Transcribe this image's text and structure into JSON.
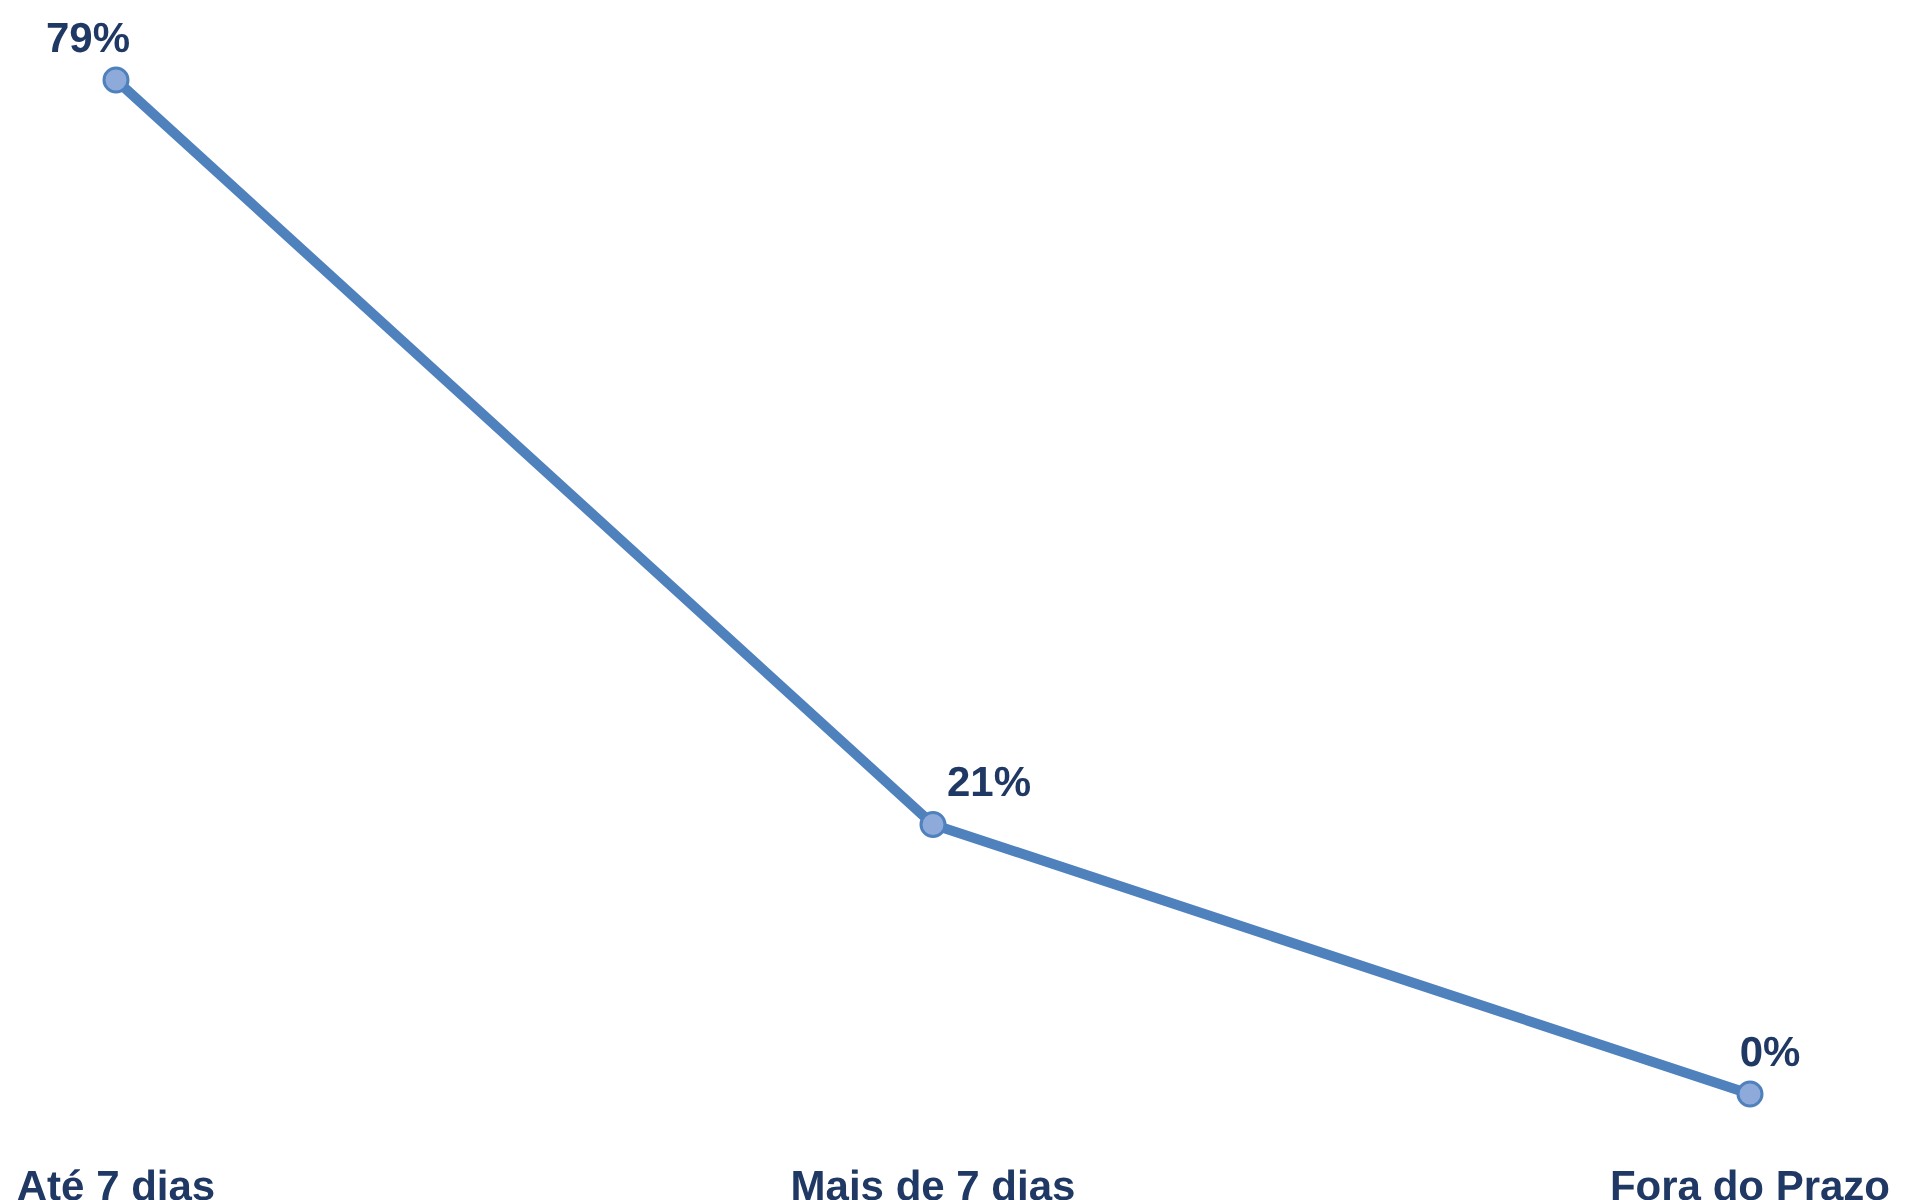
{
  "chart_data": {
    "type": "line",
    "categories": [
      "Até 7 dias",
      "Mais de 7 dias",
      "Fora do Prazo"
    ],
    "series": [
      {
        "color": "#4f81bd",
        "values": [
          79,
          21,
          0
        ],
        "value_labels": [
          "79%",
          "21%",
          "0%"
        ]
      }
    ],
    "marker": "circle",
    "tick_labels": "x"
  }
}
